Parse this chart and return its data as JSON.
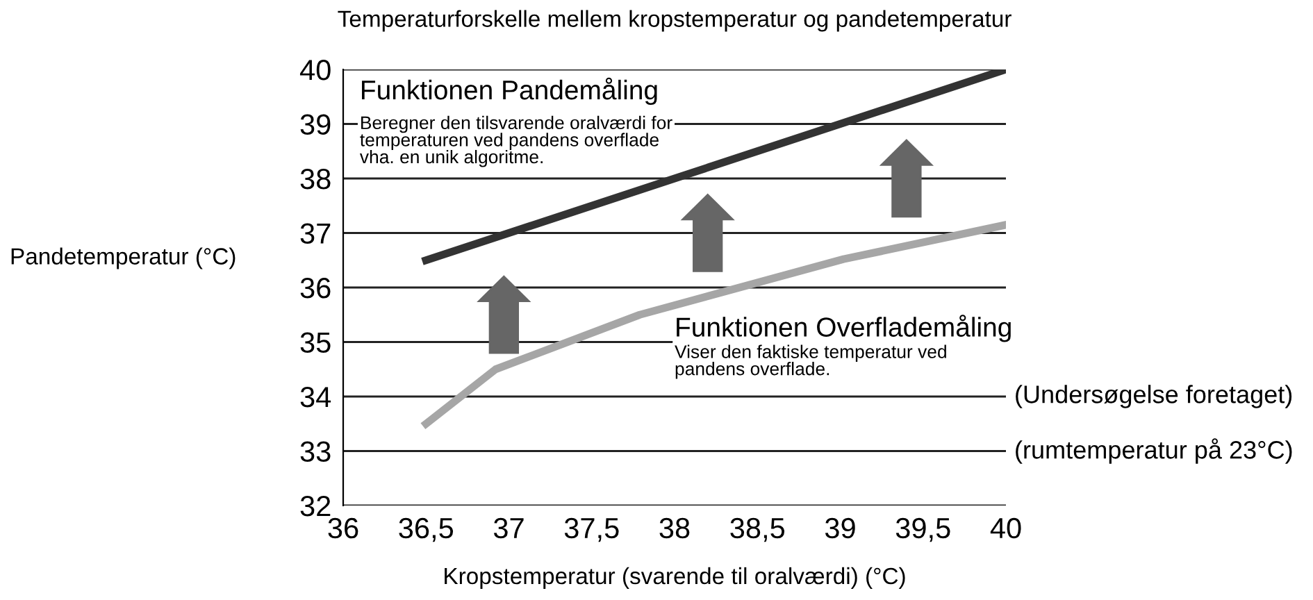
{
  "chart_data": {
    "type": "line",
    "title": "Temperaturforskelle mellem kropstemperatur og pandetemperatur",
    "xlabel": "Kropstemperatur (svarende til oralværdi) (°C)",
    "ylabel": "Pandetemperatur (°C)",
    "series": [
      {
        "name": "Funktionen Pandemåling",
        "color": "#333333",
        "x": [
          36.5,
          40
        ],
        "values": [
          36.5,
          40
        ]
      },
      {
        "name": "Funktionen Overflademåling",
        "color": "#a6a6a6",
        "x": [
          36.5,
          36.92,
          37.79,
          39.02,
          40
        ],
        "values": [
          33.5,
          34.5,
          35.5,
          36.52,
          37.15
        ]
      }
    ],
    "xlim": [
      36,
      40
    ],
    "ylim": [
      32,
      40
    ],
    "xticks": [
      36,
      {
        "value": 36.5,
        "label": "36,5"
      },
      37,
      {
        "value": 37.5,
        "label": "37,5"
      },
      38,
      {
        "value": 38.5,
        "label": "38,5"
      },
      39,
      {
        "value": 39.5,
        "label": "39,5"
      },
      40
    ],
    "yticks": [
      32,
      33,
      34,
      35,
      36,
      37,
      38,
      39,
      40
    ],
    "grid": "y",
    "annotations": [
      "Beregner den tilsvarende oralværdi for\ntemperaturen ved pandens overflade\nvha. en unik algoritme.",
      "Viser den faktiske temperatur ved\npandens overflade.",
      "(Undersøgelse foretaget)",
      "(rumtemperatur på 23°C)"
    ]
  }
}
